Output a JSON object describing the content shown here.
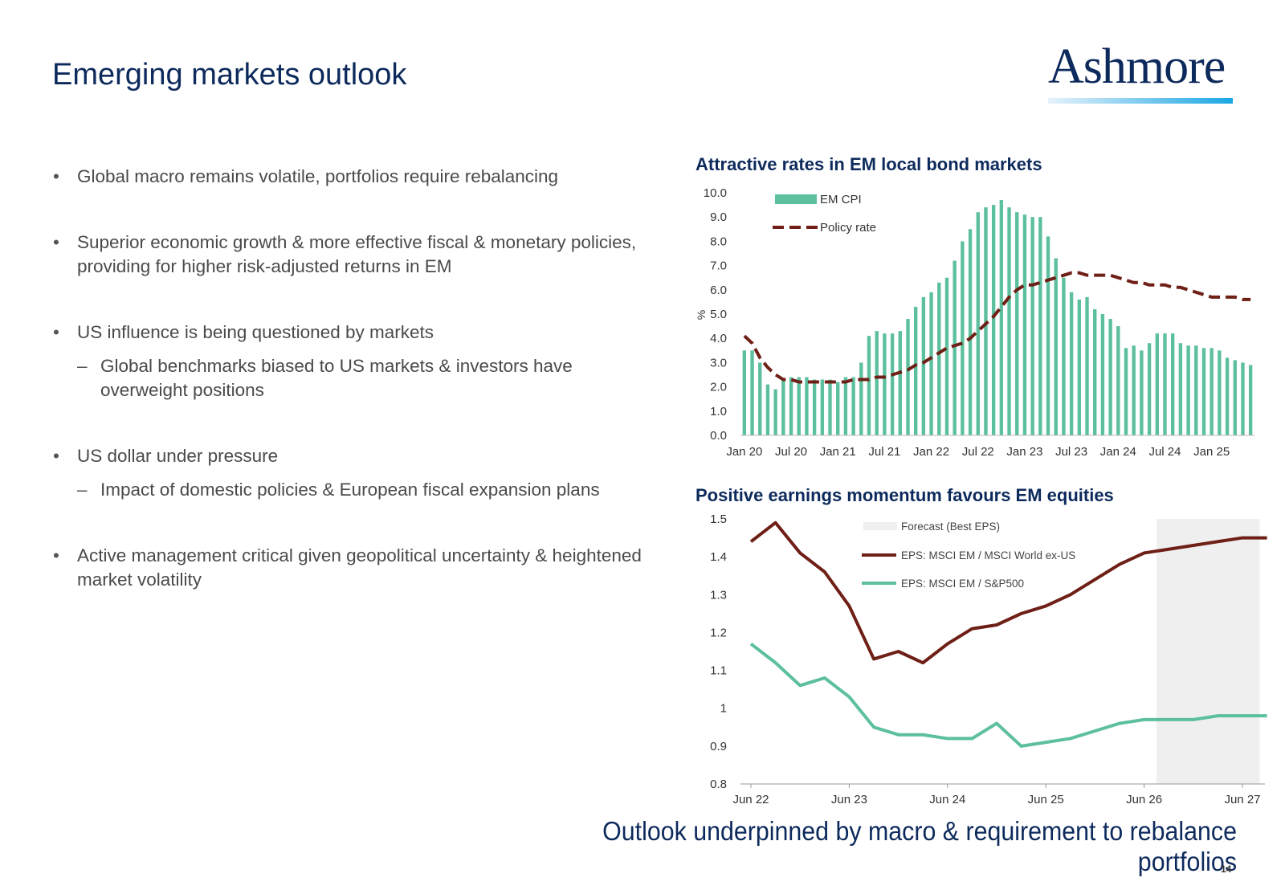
{
  "slide": {
    "title": "Emerging markets outlook",
    "logo_text": "Ashmore",
    "footer": "Outlook underpinned by macro & requirement to rebalance portfolios",
    "page_number": "14"
  },
  "bullets": [
    {
      "text": "Global macro remains volatile, portfolios require rebalancing",
      "subs": []
    },
    {
      "text": "Superior economic growth & more effective fiscal & monetary policies, providing for higher risk-adjusted returns in EM",
      "subs": []
    },
    {
      "text": "US influence is being questioned by markets",
      "subs": [
        "Global benchmarks biased to US markets & investors have overweight positions"
      ]
    },
    {
      "text": "US dollar under pressure",
      "subs": [
        "Impact of domestic policies & European fiscal expansion plans"
      ]
    },
    {
      "text": "Active management critical given geopolitical uncertainty & heightened market volatility",
      "subs": []
    }
  ],
  "colors": {
    "navy": "#0d2a5c",
    "green": "#5cbf9e",
    "maroon": "#6e1f16",
    "forecast": "#efefef"
  },
  "chart_data": [
    {
      "type": "bar",
      "title": "Attractive rates in EM local bond markets",
      "ylabel": "%",
      "ylim": [
        0,
        10
      ],
      "yticks": [
        "0.0",
        "1.0",
        "2.0",
        "3.0",
        "4.0",
        "5.0",
        "6.0",
        "7.0",
        "8.0",
        "9.0",
        "10.0"
      ],
      "xticks": [
        "Jan 20",
        "Jul 20",
        "Jan 21",
        "Jul 21",
        "Jan 22",
        "Jul 22",
        "Jan 23",
        "Jul 23",
        "Jan 24",
        "Jul 24",
        "Jan 25"
      ],
      "legend": [
        {
          "name": "EM CPI",
          "style": "bar"
        },
        {
          "name": "Policy rate",
          "style": "dashed"
        }
      ],
      "series": [
        {
          "name": "EM CPI",
          "kind": "bar",
          "values": [
            3.5,
            3.5,
            3.0,
            2.1,
            1.9,
            2.3,
            2.4,
            2.4,
            2.4,
            2.3,
            2.3,
            2.3,
            2.2,
            2.4,
            2.4,
            3.0,
            4.1,
            4.3,
            4.2,
            4.2,
            4.3,
            4.8,
            5.3,
            5.7,
            5.9,
            6.3,
            6.5,
            7.2,
            8.0,
            8.5,
            9.2,
            9.4,
            9.5,
            9.7,
            9.4,
            9.2,
            9.1,
            9.0,
            9.0,
            8.2,
            7.3,
            6.5,
            5.9,
            5.6,
            5.7,
            5.2,
            5.0,
            4.8,
            4.5,
            3.6,
            3.7,
            3.5,
            3.8,
            4.2,
            4.2,
            4.2,
            3.8,
            3.7,
            3.7,
            3.6,
            3.6,
            3.5,
            3.2,
            3.1,
            3.0,
            2.9
          ]
        },
        {
          "name": "Policy rate",
          "kind": "dashed-line",
          "values": [
            4.1,
            3.8,
            3.2,
            2.8,
            2.5,
            2.3,
            2.3,
            2.2,
            2.2,
            2.2,
            2.2,
            2.2,
            2.2,
            2.2,
            2.3,
            2.3,
            2.3,
            2.4,
            2.4,
            2.5,
            2.6,
            2.7,
            2.9,
            3.0,
            3.2,
            3.4,
            3.6,
            3.7,
            3.8,
            4.0,
            4.3,
            4.6,
            4.9,
            5.3,
            5.7,
            6.0,
            6.2,
            6.2,
            6.3,
            6.4,
            6.5,
            6.6,
            6.7,
            6.7,
            6.6,
            6.6,
            6.6,
            6.6,
            6.5,
            6.4,
            6.3,
            6.3,
            6.2,
            6.2,
            6.2,
            6.1,
            6.1,
            6.0,
            5.9,
            5.8,
            5.7,
            5.7,
            5.7,
            5.7,
            5.6,
            5.6
          ]
        }
      ]
    },
    {
      "type": "line",
      "title": "Positive earnings momentum favours EM equities",
      "ylim": [
        0.8,
        1.5
      ],
      "yticks": [
        "0.8",
        "0.9",
        "1",
        "1.1",
        "1.2",
        "1.3",
        "1.4",
        "1.5"
      ],
      "xticks": [
        "Jun 22",
        "Jun 23",
        "Jun 24",
        "Jun 25",
        "Jun 26",
        "Jun 27"
      ],
      "x": [
        0,
        1,
        2,
        3,
        4,
        5,
        6,
        7,
        8,
        9,
        10,
        11,
        12,
        13,
        14,
        15,
        16,
        17,
        18,
        19,
        20,
        21
      ],
      "forecast_range": [
        16.5,
        20.7
      ],
      "legend": [
        {
          "name": "Forecast (Best EPS)",
          "style": "shade"
        },
        {
          "name": "EPS: MSCI EM / MSCI World ex-US",
          "style": "line"
        },
        {
          "name": "EPS: MSCI EM / S&P500",
          "style": "line"
        }
      ],
      "series": [
        {
          "name": "EPS: MSCI EM / MSCI World ex-US",
          "values": [
            1.44,
            1.49,
            1.41,
            1.36,
            1.27,
            1.13,
            1.15,
            1.12,
            1.17,
            1.21,
            1.22,
            1.25,
            1.27,
            1.3,
            1.34,
            1.38,
            1.41,
            1.42,
            1.43,
            1.44,
            1.45,
            1.45
          ]
        },
        {
          "name": "EPS: MSCI EM / S&P500",
          "values": [
            1.17,
            1.12,
            1.06,
            1.08,
            1.03,
            0.95,
            0.93,
            0.93,
            0.92,
            0.92,
            0.96,
            0.9,
            0.91,
            0.92,
            0.94,
            0.96,
            0.97,
            0.97,
            0.97,
            0.98,
            0.98,
            0.98
          ]
        }
      ]
    }
  ]
}
